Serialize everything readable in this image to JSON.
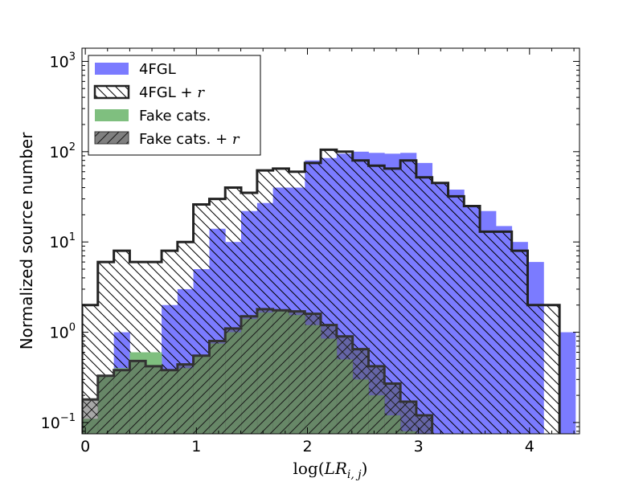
{
  "chart_data": {
    "type": "histogram",
    "title": "",
    "xlabel": "log(LR_{i,j})",
    "xlabel_parts": {
      "prefix": "log(",
      "var": "LR",
      "sub": "i, j",
      "suffix": ")"
    },
    "ylabel": "Normalized source number",
    "yscale": "log",
    "xlim": [
      -0.03,
      4.45
    ],
    "ylim": [
      0.075,
      1400
    ],
    "xticks": [
      0,
      1,
      2,
      3,
      4
    ],
    "xtick_labels": [
      "0",
      "1",
      "2",
      "3",
      "4"
    ],
    "yticks": [
      0.1,
      1,
      10,
      100,
      1000
    ],
    "ytick_labels": [
      {
        "base": "10",
        "exp": "−1"
      },
      {
        "base": "10",
        "exp": "0"
      },
      {
        "base": "10",
        "exp": "1"
      },
      {
        "base": "10",
        "exp": "2"
      },
      {
        "base": "10",
        "exp": "3"
      }
    ],
    "grid": false,
    "legend_position": "top-left",
    "bin_edges": [
      -0.03,
      0.113,
      0.257,
      0.4,
      0.543,
      0.687,
      0.83,
      0.973,
      1.117,
      1.26,
      1.403,
      1.547,
      1.69,
      1.833,
      1.977,
      2.12,
      2.263,
      2.407,
      2.55,
      2.693,
      2.837,
      2.98,
      3.123,
      3.267,
      3.41,
      3.553,
      3.697,
      3.84,
      3.983,
      4.127,
      4.27,
      4.413
    ],
    "series": [
      {
        "name": "4FGL",
        "style": "filled",
        "color": "#7b7bff",
        "values": [
          0,
          0,
          1.0,
          0.35,
          0.38,
          2.0,
          3.0,
          5.0,
          14.0,
          10.0,
          22.0,
          27.0,
          40.0,
          40.0,
          80.0,
          85.0,
          95.0,
          100.0,
          97.0,
          95.0,
          97.0,
          75.0,
          45.0,
          38.0,
          25.0,
          22.0,
          15.0,
          10.0,
          6.0,
          0,
          1.0
        ]
      },
      {
        "name": "4FGL + r",
        "name_text": "4FGL + ",
        "name_math": "r",
        "style": "step-hatched",
        "hatch": "backslash",
        "color": "#222222",
        "values": [
          2.0,
          6.0,
          8.0,
          6.0,
          6.0,
          8.0,
          10.0,
          26.0,
          30.0,
          40.0,
          35.0,
          62.0,
          65.0,
          60.0,
          75.0,
          105.0,
          100.0,
          80.0,
          70.0,
          65.0,
          80.0,
          52.0,
          45.0,
          32.0,
          25.0,
          13.0,
          13.0,
          8.0,
          2.0,
          2.0,
          0
        ]
      },
      {
        "name": "Fake cats.",
        "style": "filled",
        "color": "#7fbf7f",
        "values": [
          0.11,
          0.32,
          0.4,
          0.6,
          0.6,
          0.38,
          0.4,
          0.55,
          0.75,
          1.0,
          1.4,
          1.65,
          1.7,
          1.55,
          1.2,
          0.85,
          0.5,
          0.3,
          0.2,
          0.12,
          0.08,
          0,
          0,
          0,
          0,
          0,
          0,
          0,
          0,
          0,
          0
        ]
      },
      {
        "name": "Fake cats. + r",
        "name_text": "Fake cats. + ",
        "name_math": "r",
        "style": "step-hatched",
        "hatch": "forward",
        "color": "#333333",
        "values": [
          0.18,
          0.33,
          0.38,
          0.48,
          0.42,
          0.38,
          0.44,
          0.55,
          0.8,
          1.1,
          1.5,
          1.8,
          1.75,
          1.7,
          1.6,
          1.2,
          0.9,
          0.65,
          0.42,
          0.27,
          0.17,
          0.12,
          0,
          0,
          0,
          0,
          0,
          0,
          0,
          0,
          0
        ]
      }
    ]
  }
}
